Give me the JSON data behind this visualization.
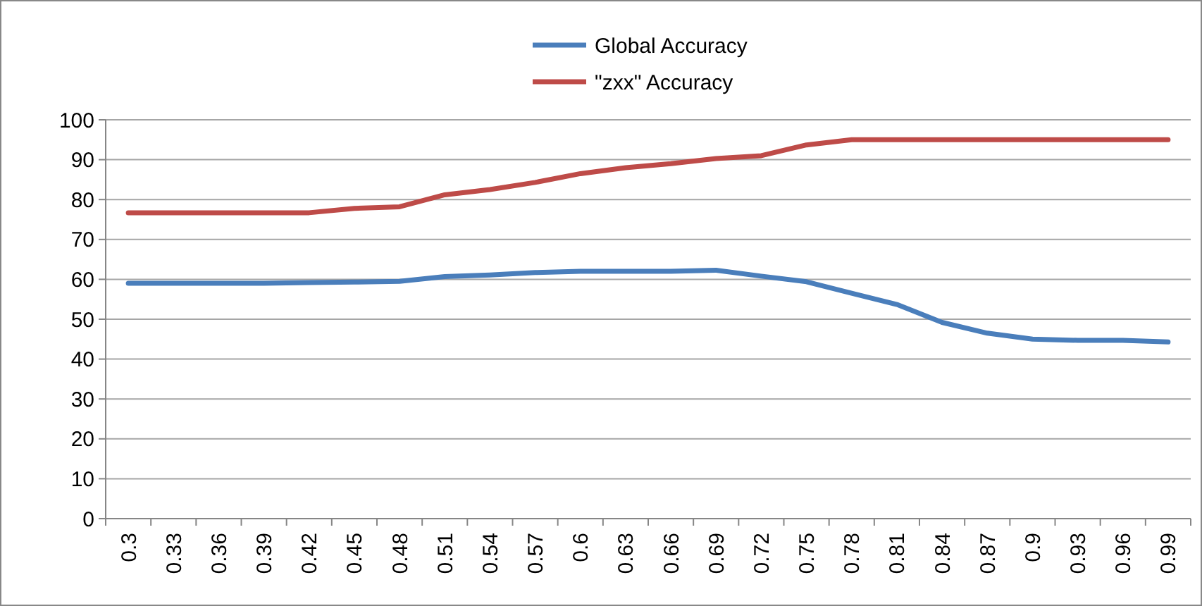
{
  "chart_data": {
    "type": "line",
    "categories": [
      "0.3",
      "0.33",
      "0.36",
      "0.39",
      "0.42",
      "0.45",
      "0.48",
      "0.51",
      "0.54",
      "0.57",
      "0.6",
      "0.63",
      "0.66",
      "0.69",
      "0.72",
      "0.75",
      "0.78",
      "0.81",
      "0.84",
      "0.87",
      "0.9",
      "0.93",
      "0.96",
      "0.99"
    ],
    "series": [
      {
        "name": "Global Accuracy",
        "color": "#4a7ebb",
        "values": [
          59,
          59,
          59,
          59,
          59.2,
          59.3,
          59.5,
          60.7,
          61.1,
          61.7,
          62,
          62,
          62,
          62.3,
          60.8,
          59.4,
          56.5,
          53.7,
          49.2,
          46.5,
          45,
          44.7,
          44.7,
          44.3
        ]
      },
      {
        "name": "\"zxx\" Accuracy",
        "color": "#be4b48",
        "values": [
          76.7,
          76.7,
          76.7,
          76.7,
          76.7,
          77.8,
          78.2,
          81.2,
          82.5,
          84.3,
          86.5,
          88,
          89,
          90.3,
          91,
          93.7,
          95,
          95,
          95,
          95,
          95,
          95,
          95,
          95
        ]
      }
    ],
    "ylim": [
      0,
      100
    ],
    "yticks": [
      0,
      10,
      20,
      30,
      40,
      50,
      60,
      70,
      80,
      90,
      100
    ],
    "grid": "y",
    "legend": "top",
    "marker": "none",
    "line_style": "solid"
  }
}
